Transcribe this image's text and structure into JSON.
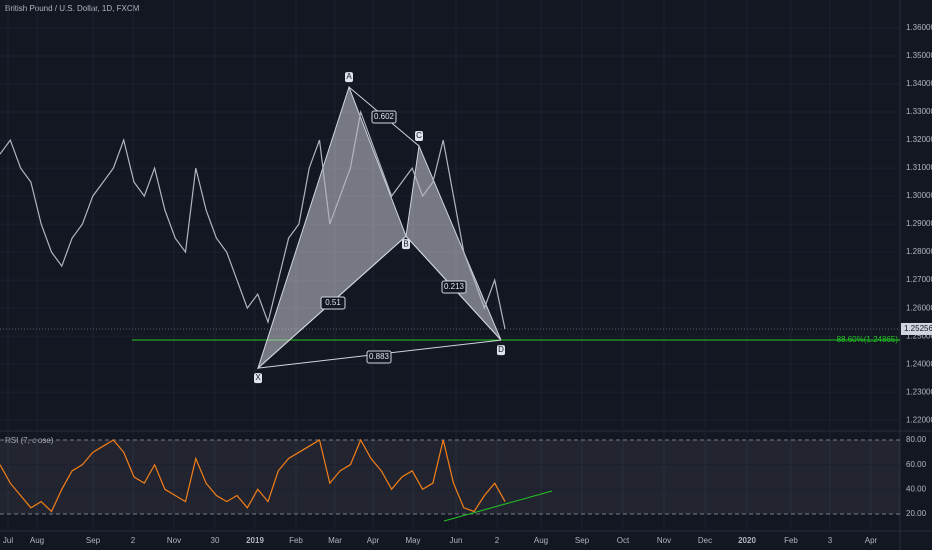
{
  "header": {
    "title": "British Pound / U.S. Dollar, 1D, FXCM"
  },
  "chart_data": [
    {
      "type": "line",
      "name": "price",
      "values": [
        1.315,
        1.32,
        1.31,
        1.305,
        1.29,
        1.28,
        1.275,
        1.285,
        1.29,
        1.3,
        1.305,
        1.31,
        1.32,
        1.305,
        1.3,
        1.31,
        1.295,
        1.285,
        1.28,
        1.31,
        1.295,
        1.285,
        1.28,
        1.27,
        1.26,
        1.265,
        1.255,
        1.27,
        1.285,
        1.29,
        1.31,
        1.32,
        1.29,
        1.3,
        1.31,
        1.33,
        1.32,
        1.31,
        1.3,
        1.305,
        1.31,
        1.3,
        1.305,
        1.32,
        1.3,
        1.28,
        1.27,
        1.26,
        1.27,
        1.25256
      ],
      "color": "#b2b5be",
      "ylim": [
        1.2165,
        1.37
      ],
      "yticks": [
        {
          "value": 1.36,
          "label": "1.36000"
        },
        {
          "value": 1.35,
          "label": "1.35000"
        },
        {
          "value": 1.34,
          "label": "1.34000"
        },
        {
          "value": 1.33,
          "label": "1.33000"
        },
        {
          "value": 1.32,
          "label": "1.32000"
        },
        {
          "value": 1.31,
          "label": "1.31000"
        },
        {
          "value": 1.3,
          "label": "1.30000"
        },
        {
          "value": 1.29,
          "label": "1.29000"
        },
        {
          "value": 1.28,
          "label": "1.28000"
        },
        {
          "value": 1.27,
          "label": "1.27000"
        },
        {
          "value": 1.26,
          "label": "1.26000"
        },
        {
          "value": 1.25,
          "label": "1.25000"
        },
        {
          "value": 1.24,
          "label": "1.24000"
        },
        {
          "value": 1.23,
          "label": "1.23000"
        },
        {
          "value": 1.22,
          "label": "1.22000"
        }
      ],
      "current": {
        "value": 1.25256,
        "label": "1.25256"
      },
      "level": {
        "value": 1.24865,
        "label": "88.60%(1.24865)",
        "color": "#22c522"
      },
      "pattern": {
        "points": [
          {
            "label": "X",
            "value": 1.2386
          },
          {
            "label": "A",
            "value": 1.3389
          },
          {
            "label": "B",
            "value": 1.2857
          },
          {
            "label": "C",
            "value": 1.3179
          },
          {
            "label": "D",
            "value": 1.2486
          }
        ],
        "ratios": [
          0.602,
          0.51,
          0.883,
          0.213
        ]
      },
      "x_labels": [
        "Jul",
        "Aug",
        "Sep",
        "2",
        "Nov",
        "30",
        "2019",
        "Feb",
        "Mar",
        "Apr",
        "May",
        "Jun",
        "2",
        "Aug",
        "Sep",
        "Oct",
        "Nov",
        "Dec",
        "2020",
        "Feb",
        "3",
        "Apr"
      ]
    },
    {
      "type": "line",
      "name": "RSI (7, close)",
      "values": [
        60,
        45,
        35,
        25,
        30,
        22,
        40,
        55,
        60,
        70,
        75,
        80,
        70,
        50,
        45,
        60,
        40,
        35,
        30,
        65,
        45,
        35,
        30,
        35,
        25,
        40,
        30,
        55,
        65,
        70,
        75,
        80,
        45,
        55,
        60,
        80,
        65,
        55,
        40,
        50,
        55,
        40,
        45,
        80,
        45,
        25,
        22,
        35,
        45,
        30
      ],
      "color": "#f57f17",
      "ylim": [
        7,
        86.5
      ],
      "yticks": [
        {
          "value": 80,
          "label": "80.00"
        },
        {
          "value": 60,
          "label": "60.00"
        },
        {
          "value": 40,
          "label": "40.00"
        },
        {
          "value": 20,
          "label": "20.00"
        }
      ]
    }
  ]
}
